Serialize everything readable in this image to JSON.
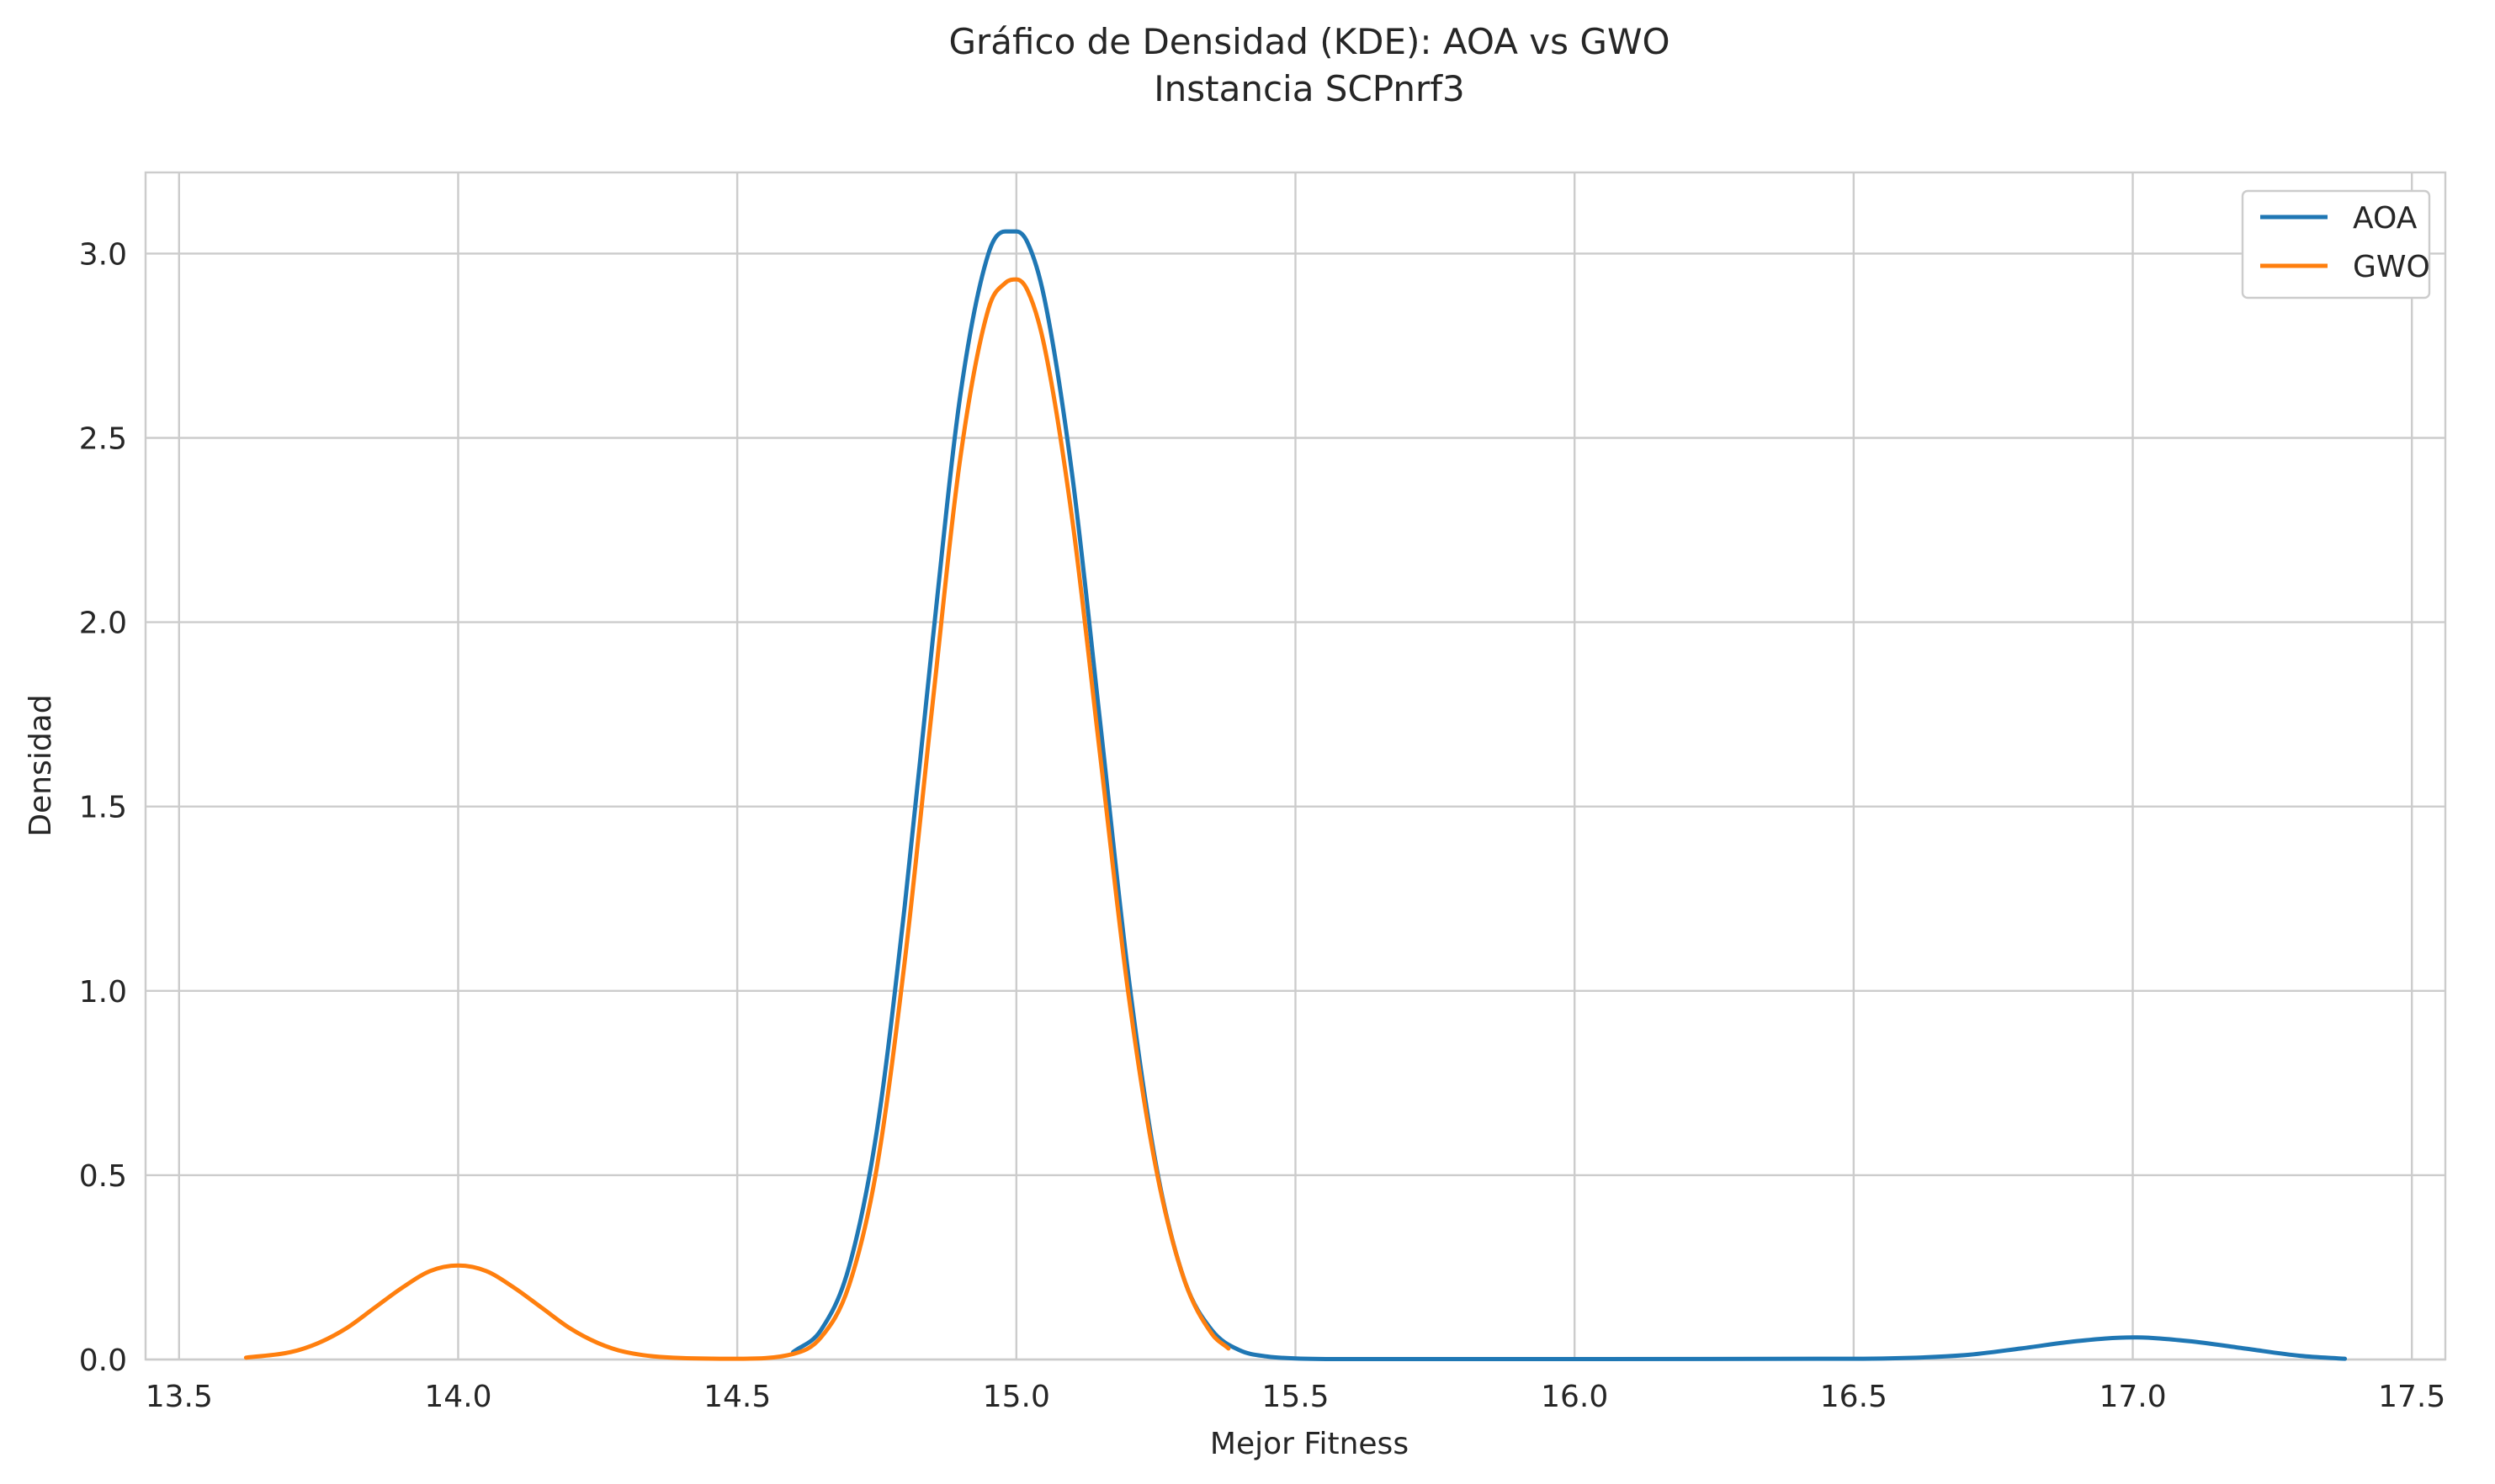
{
  "chart_data": {
    "type": "line",
    "title": "Gráfico de Densidad (KDE): AOA vs GWO",
    "subtitle": "Instancia SCPnrf3",
    "xlabel": "Mejor Fitness",
    "ylabel": "Densidad",
    "xlim": [
      13.44,
      17.56
    ],
    "ylim": [
      0.0,
      3.22
    ],
    "xticks": [
      13.5,
      14.0,
      14.5,
      15.0,
      15.5,
      16.0,
      16.5,
      17.0,
      17.5
    ],
    "xtick_labels": [
      "13.5",
      "14.0",
      "14.5",
      "15.0",
      "15.5",
      "16.0",
      "16.5",
      "17.0",
      "17.5"
    ],
    "yticks": [
      0.0,
      0.5,
      1.0,
      1.5,
      2.0,
      2.5,
      3.0
    ],
    "ytick_labels": [
      "0.0",
      "0.5",
      "1.0",
      "1.5",
      "2.0",
      "2.5",
      "3.0"
    ],
    "grid": true,
    "legend_position": "top-right",
    "series": [
      {
        "name": "AOA",
        "color": "#1f77b4",
        "x": [
          14.6,
          14.65,
          14.7,
          14.75,
          14.8,
          14.85,
          14.9,
          14.95,
          14.98,
          15.0,
          15.02,
          15.05,
          15.1,
          15.15,
          15.2,
          15.25,
          15.3,
          15.35,
          15.4,
          15.45,
          15.5,
          15.6,
          16.0,
          16.5,
          16.7,
          16.8,
          16.9,
          17.0,
          17.1,
          17.2,
          17.3,
          17.38
        ],
        "y": [
          0.02,
          0.08,
          0.25,
          0.62,
          1.23,
          1.95,
          2.62,
          3.0,
          3.06,
          3.06,
          3.03,
          2.88,
          2.4,
          1.73,
          1.05,
          0.53,
          0.22,
          0.08,
          0.025,
          0.008,
          0.003,
          0.001,
          0.001,
          0.002,
          0.012,
          0.03,
          0.05,
          0.06,
          0.05,
          0.03,
          0.01,
          0.002
        ]
      },
      {
        "name": "GWO",
        "color": "#ff7f0e",
        "x": [
          13.62,
          13.7,
          13.75,
          13.8,
          13.85,
          13.9,
          13.95,
          14.0,
          14.05,
          14.1,
          14.15,
          14.2,
          14.25,
          14.3,
          14.4,
          14.5,
          14.6,
          14.65,
          14.7,
          14.75,
          14.8,
          14.85,
          14.9,
          14.95,
          14.98,
          15.0,
          15.02,
          15.05,
          15.1,
          15.15,
          15.2,
          15.25,
          15.3,
          15.35,
          15.38
        ],
        "y": [
          0.005,
          0.02,
          0.045,
          0.085,
          0.14,
          0.195,
          0.24,
          0.255,
          0.24,
          0.195,
          0.14,
          0.085,
          0.045,
          0.02,
          0.004,
          0.002,
          0.015,
          0.06,
          0.2,
          0.52,
          1.08,
          1.78,
          2.45,
          2.85,
          2.92,
          2.93,
          2.9,
          2.75,
          2.28,
          1.64,
          1.0,
          0.52,
          0.22,
          0.07,
          0.03
        ]
      }
    ]
  }
}
